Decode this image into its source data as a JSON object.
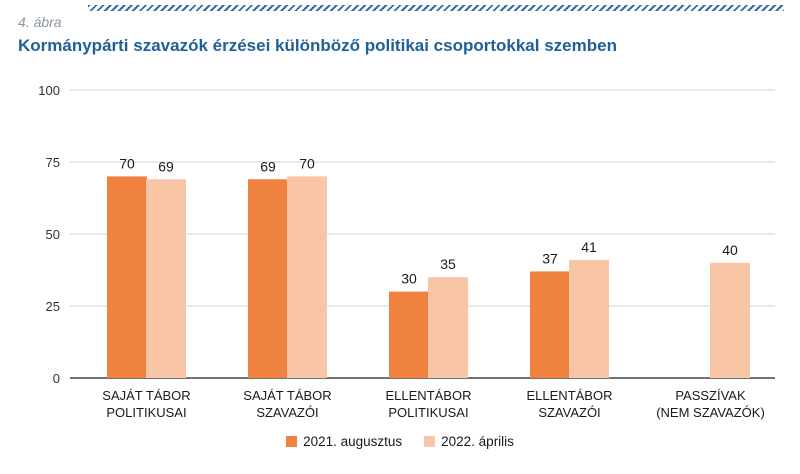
{
  "header": {
    "figure_label": "4. ábra",
    "title": "Kormánypárti szavazók érzései különböző politikai csoportokkal szemben"
  },
  "colors": {
    "series_2021": "#f0823f",
    "series_2022": "#f8c6a6",
    "grid": "#d0d0d0",
    "axis": "#444444",
    "title": "#1f5f9a"
  },
  "chart_data": {
    "type": "bar",
    "categories": [
      [
        "SAJÁT TÁBOR",
        "POLITIKUSAI"
      ],
      [
        "SAJÁT TÁBOR",
        "SZAVAZÓI"
      ],
      [
        "ELLENTÁBOR",
        "POLITIKUSAI"
      ],
      [
        "ELLENTÁBOR",
        "SZAVAZÓI"
      ],
      [
        "PASSZÍVAK",
        "(NEM SZAVAZÓK)"
      ]
    ],
    "series": [
      {
        "name": "2021. augusztus",
        "values": [
          70,
          69,
          30,
          37,
          null
        ]
      },
      {
        "name": "2022. április",
        "values": [
          69,
          70,
          35,
          41,
          40
        ]
      }
    ],
    "ylim": [
      0,
      100
    ],
    "yticks": [
      0,
      25,
      50,
      75,
      100
    ],
    "grid": true,
    "legend_position": "bottom"
  }
}
